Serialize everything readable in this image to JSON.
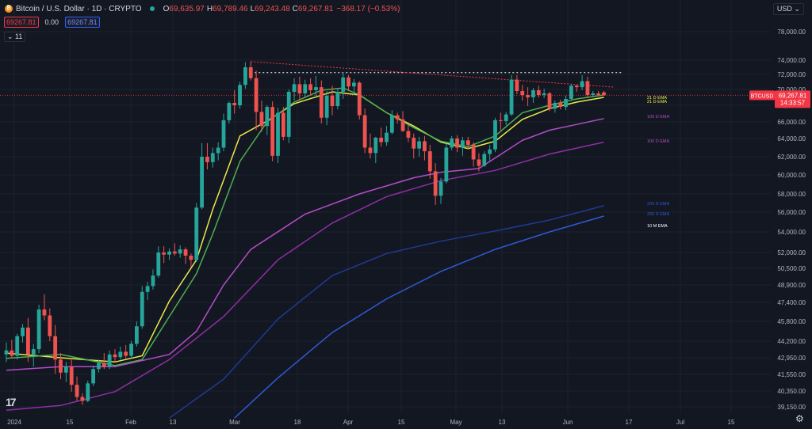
{
  "header": {
    "symbol": "Bitcoin / U.S. Dollar · 1D · CRYPTO",
    "open_label": "O",
    "open": "69,635.97",
    "high_label": "H",
    "high": "69,789.46",
    "low_label": "L",
    "low": "69,243.48",
    "close_label": "C",
    "close": "69,267.81",
    "change": "−368.17 (−0.53%)",
    "sell_price": "69267.81",
    "spread": "0.00",
    "buy_price": "69267.81",
    "indicators_toggle": "11",
    "currency": "USD",
    "logo": "TradingView"
  },
  "chart_data": {
    "type": "candlestick",
    "symbol": "BTCUSD",
    "price_axis_ticks": [
      39150,
      40350,
      41550,
      42950,
      44200,
      45800,
      47400,
      48900,
      50500,
      52000,
      54000,
      56000,
      58000,
      60000,
      62000,
      64000,
      66000,
      68000,
      70000,
      72000,
      74000,
      78000
    ],
    "time_axis_labels": [
      "2024",
      "15",
      "Feb",
      "13",
      "Mar",
      "18",
      "Apr",
      "15",
      "May",
      "13",
      "Jun",
      "17",
      "Jul",
      "15"
    ],
    "last_price_label": "69,267.81",
    "countdown": "14:33:57",
    "symbol_tag": "BTCUSD",
    "last_price": 69267.81,
    "candles": [
      [
        0,
        43200,
        44100,
        42600,
        43500
      ],
      [
        1,
        43500,
        44300,
        42900,
        43100
      ],
      [
        2,
        43100,
        44800,
        42800,
        44600
      ],
      [
        3,
        44600,
        45600,
        44100,
        45300
      ],
      [
        4,
        45300,
        46100,
        42600,
        43200
      ],
      [
        5,
        43200,
        44000,
        42200,
        43600
      ],
      [
        6,
        43600,
        47200,
        43300,
        46800
      ],
      [
        7,
        46800,
        48100,
        45900,
        46300
      ],
      [
        8,
        46300,
        46900,
        44200,
        44600
      ],
      [
        9,
        44600,
        45500,
        41600,
        42800
      ],
      [
        10,
        42800,
        43300,
        41200,
        41700
      ],
      [
        11,
        41700,
        42600,
        41000,
        42200
      ],
      [
        12,
        42200,
        42900,
        40300,
        40800
      ],
      [
        13,
        40800,
        41400,
        39600,
        39900
      ],
      [
        14,
        39900,
        40200,
        39300,
        39600
      ],
      [
        15,
        39600,
        41100,
        39500,
        40900
      ],
      [
        16,
        40900,
        42300,
        40700,
        42000
      ],
      [
        17,
        42000,
        42800,
        41700,
        42500
      ],
      [
        18,
        42500,
        43300,
        42000,
        42200
      ],
      [
        19,
        42200,
        43500,
        42000,
        43200
      ],
      [
        20,
        43200,
        43600,
        42600,
        43000
      ],
      [
        21,
        43000,
        43800,
        42800,
        43400
      ],
      [
        22,
        43400,
        43900,
        42900,
        43100
      ],
      [
        23,
        43100,
        44200,
        42900,
        44000
      ],
      [
        24,
        44000,
        45800,
        43800,
        45400
      ],
      [
        25,
        45400,
        48800,
        45200,
        48300
      ],
      [
        26,
        48300,
        49200,
        47600,
        48800
      ],
      [
        27,
        48800,
        50400,
        48500,
        49800
      ],
      [
        28,
        49800,
        52600,
        49600,
        52000
      ],
      [
        29,
        52000,
        52600,
        51000,
        51800
      ],
      [
        30,
        51800,
        52400,
        51300,
        52100
      ],
      [
        31,
        52100,
        52900,
        51700,
        51900
      ],
      [
        32,
        51900,
        52700,
        51500,
        52300
      ],
      [
        33,
        52300,
        52500,
        50900,
        51700
      ],
      [
        34,
        51700,
        51900,
        50600,
        51300
      ],
      [
        35,
        51300,
        57000,
        51100,
        56500
      ],
      [
        36,
        56500,
        63500,
        56300,
        62000
      ],
      [
        37,
        62000,
        63500,
        60600,
        61400
      ],
      [
        38,
        61400,
        63000,
        60800,
        62400
      ],
      [
        39,
        62400,
        63600,
        61600,
        63000
      ],
      [
        40,
        63000,
        67000,
        62600,
        66200
      ],
      [
        41,
        66200,
        68500,
        65800,
        68300
      ],
      [
        42,
        68300,
        69900,
        67000,
        68000
      ],
      [
        43,
        68000,
        71000,
        67600,
        70600
      ],
      [
        44,
        70600,
        73700,
        70100,
        73000
      ],
      [
        45,
        73000,
        73800,
        71200,
        71500
      ],
      [
        46,
        71500,
        72500,
        65000,
        67200
      ],
      [
        47,
        67200,
        68600,
        64800,
        65500
      ],
      [
        48,
        65500,
        68000,
        64400,
        67800
      ],
      [
        49,
        67800,
        68500,
        61500,
        62100
      ],
      [
        50,
        62100,
        67700,
        61300,
        67100
      ],
      [
        51,
        67100,
        67800,
        63800,
        64200
      ],
      [
        52,
        64200,
        70000,
        63500,
        69700
      ],
      [
        53,
        69700,
        71500,
        68600,
        70700
      ],
      [
        54,
        70700,
        71700,
        68600,
        69500
      ],
      [
        55,
        69500,
        71300,
        68900,
        70700
      ],
      [
        56,
        70700,
        71500,
        69200,
        69900
      ],
      [
        57,
        69900,
        71800,
        68900,
        70300
      ],
      [
        58,
        70300,
        71200,
        65800,
        66500
      ],
      [
        59,
        66500,
        69800,
        65600,
        69200
      ],
      [
        60,
        69200,
        70500,
        66800,
        67900
      ],
      [
        61,
        67900,
        70200,
        67500,
        69700
      ],
      [
        62,
        69700,
        72300,
        68800,
        71600
      ],
      [
        63,
        71600,
        71900,
        69800,
        70400
      ],
      [
        64,
        70400,
        71400,
        69300,
        70900
      ],
      [
        65,
        70900,
        71100,
        66300,
        66800
      ],
      [
        66,
        66800,
        67600,
        62400,
        63000
      ],
      [
        67,
        63000,
        64600,
        61800,
        62400
      ],
      [
        68,
        62400,
        64200,
        61300,
        64100
      ],
      [
        69,
        64100,
        65300,
        63100,
        63600
      ],
      [
        70,
        63600,
        65500,
        63200,
        64700
      ],
      [
        71,
        64700,
        67400,
        64500,
        66800
      ],
      [
        72,
        66800,
        67100,
        65800,
        66300
      ],
      [
        73,
        66300,
        67300,
        64800,
        64900
      ],
      [
        74,
        64900,
        65700,
        63600,
        64100
      ],
      [
        75,
        64100,
        64600,
        61800,
        62900
      ],
      [
        76,
        62900,
        64200,
        62000,
        63700
      ],
      [
        77,
        63700,
        64300,
        61600,
        62600
      ],
      [
        78,
        62600,
        63300,
        59600,
        60400
      ],
      [
        79,
        60400,
        61300,
        56800,
        57800
      ],
      [
        80,
        57800,
        59700,
        56900,
        59300
      ],
      [
        81,
        59300,
        63600,
        59100,
        63000
      ],
      [
        82,
        63000,
        64300,
        62700,
        64000
      ],
      [
        83,
        64000,
        64400,
        62500,
        63000
      ],
      [
        84,
        63000,
        64200,
        62100,
        63800
      ],
      [
        85,
        63800,
        64200,
        62800,
        63300
      ],
      [
        86,
        63300,
        63600,
        60900,
        61700
      ],
      [
        87,
        61700,
        62400,
        60400,
        61000
      ],
      [
        88,
        61000,
        62600,
        60900,
        62300
      ],
      [
        89,
        62300,
        63300,
        61500,
        62800
      ],
      [
        90,
        62800,
        66500,
        62500,
        66200
      ],
      [
        91,
        66200,
        67100,
        65000,
        66100
      ],
      [
        92,
        66100,
        67200,
        65600,
        66900
      ],
      [
        93,
        66900,
        71900,
        66700,
        71300
      ],
      [
        94,
        71300,
        71900,
        69400,
        69800
      ],
      [
        95,
        69800,
        70600,
        68600,
        69300
      ],
      [
        96,
        69300,
        70300,
        67900,
        69000
      ],
      [
        97,
        69000,
        70200,
        68300,
        69900
      ],
      [
        98,
        69900,
        70500,
        69000,
        69300
      ],
      [
        99,
        69300,
        70100,
        68900,
        69500
      ],
      [
        100,
        69500,
        69700,
        67300,
        67600
      ],
      [
        101,
        67600,
        68600,
        67100,
        68300
      ],
      [
        102,
        68300,
        68700,
        67500,
        67800
      ],
      [
        103,
        67800,
        69200,
        67400,
        68800
      ],
      [
        104,
        68800,
        70700,
        68600,
        70500
      ],
      [
        105,
        70500,
        70600,
        69700,
        70300
      ],
      [
        106,
        70300,
        71900,
        69900,
        71100
      ],
      [
        107,
        71100,
        71700,
        68900,
        69300
      ],
      [
        108,
        69300,
        69800,
        69000,
        69500
      ],
      [
        109,
        69500,
        69800,
        69200,
        69300
      ],
      [
        110,
        69636,
        69789,
        69243,
        69268
      ]
    ],
    "ema_labels": [
      "21 D EMA",
      "21 D EMA",
      "100 D EMA",
      "100 D EMA",
      "200 D EMA",
      "200 D EMA",
      "10 M EMA"
    ],
    "ema_lines": [
      {
        "name": "21 D EMA",
        "color": "#e7eb4b",
        "points": [
          [
            0,
            43300
          ],
          [
            10,
            42950
          ],
          [
            20,
            42600
          ],
          [
            25,
            43100
          ],
          [
            30,
            47500
          ],
          [
            35,
            51300
          ],
          [
            38,
            56300
          ],
          [
            43,
            64300
          ],
          [
            48,
            66100
          ],
          [
            53,
            68200
          ],
          [
            60,
            69700
          ],
          [
            65,
            69300
          ],
          [
            70,
            67100
          ],
          [
            75,
            65500
          ],
          [
            80,
            63600
          ],
          [
            85,
            62900
          ],
          [
            90,
            63700
          ],
          [
            95,
            66300
          ],
          [
            100,
            67600
          ],
          [
            105,
            68400
          ],
          [
            110,
            69000
          ]
        ]
      },
      {
        "name": "21 D EMA",
        "color": "#4caf50",
        "points": [
          [
            0,
            42900
          ],
          [
            10,
            43200
          ],
          [
            20,
            42300
          ],
          [
            25,
            42800
          ],
          [
            30,
            46200
          ],
          [
            35,
            50000
          ],
          [
            38,
            53800
          ],
          [
            43,
            61500
          ],
          [
            48,
            66000
          ],
          [
            53,
            68400
          ],
          [
            58,
            69900
          ],
          [
            62,
            70200
          ],
          [
            65,
            69300
          ],
          [
            70,
            67100
          ],
          [
            75,
            65300
          ],
          [
            80,
            63700
          ],
          [
            85,
            63100
          ],
          [
            90,
            64300
          ],
          [
            95,
            67100
          ],
          [
            100,
            68000
          ],
          [
            105,
            68800
          ],
          [
            110,
            69300
          ]
        ]
      },
      {
        "name": "100 D EMA",
        "color": "#b44dc8",
        "points": [
          [
            0,
            41900
          ],
          [
            10,
            42200
          ],
          [
            20,
            42200
          ],
          [
            30,
            43200
          ],
          [
            35,
            45000
          ],
          [
            40,
            48900
          ],
          [
            45,
            52300
          ],
          [
            55,
            55800
          ],
          [
            65,
            58000
          ],
          [
            75,
            59700
          ],
          [
            80,
            60300
          ],
          [
            87,
            60700
          ],
          [
            95,
            63800
          ],
          [
            100,
            65000
          ],
          [
            105,
            65700
          ],
          [
            110,
            66400
          ]
        ]
      },
      {
        "name": "100 D EMA",
        "color": "#8e2fa5",
        "points": [
          [
            0,
            38900
          ],
          [
            10,
            39250
          ],
          [
            20,
            40300
          ],
          [
            30,
            42800
          ],
          [
            40,
            46200
          ],
          [
            50,
            51300
          ],
          [
            60,
            54900
          ],
          [
            70,
            57700
          ],
          [
            80,
            59400
          ],
          [
            90,
            60500
          ],
          [
            100,
            62300
          ],
          [
            110,
            63600
          ]
        ]
      },
      {
        "name": "200 D EMA",
        "color": "#1f3a93",
        "points": [
          [
            30,
            38300
          ],
          [
            40,
            41200
          ],
          [
            50,
            46000
          ],
          [
            60,
            49800
          ],
          [
            70,
            51900
          ],
          [
            80,
            53100
          ],
          [
            90,
            54100
          ],
          [
            100,
            55200
          ],
          [
            110,
            56700
          ]
        ]
      },
      {
        "name": "200 D EMA",
        "color": "#2f5ad4",
        "points": [
          [
            42,
            38300
          ],
          [
            50,
            41300
          ],
          [
            60,
            44900
          ],
          [
            70,
            47700
          ],
          [
            80,
            50200
          ],
          [
            90,
            52300
          ],
          [
            100,
            54000
          ],
          [
            110,
            55600
          ]
        ]
      }
    ],
    "resistance_level": 72250,
    "trendline": [
      [
        45,
        73800
      ],
      [
        112,
        70300
      ]
    ]
  }
}
